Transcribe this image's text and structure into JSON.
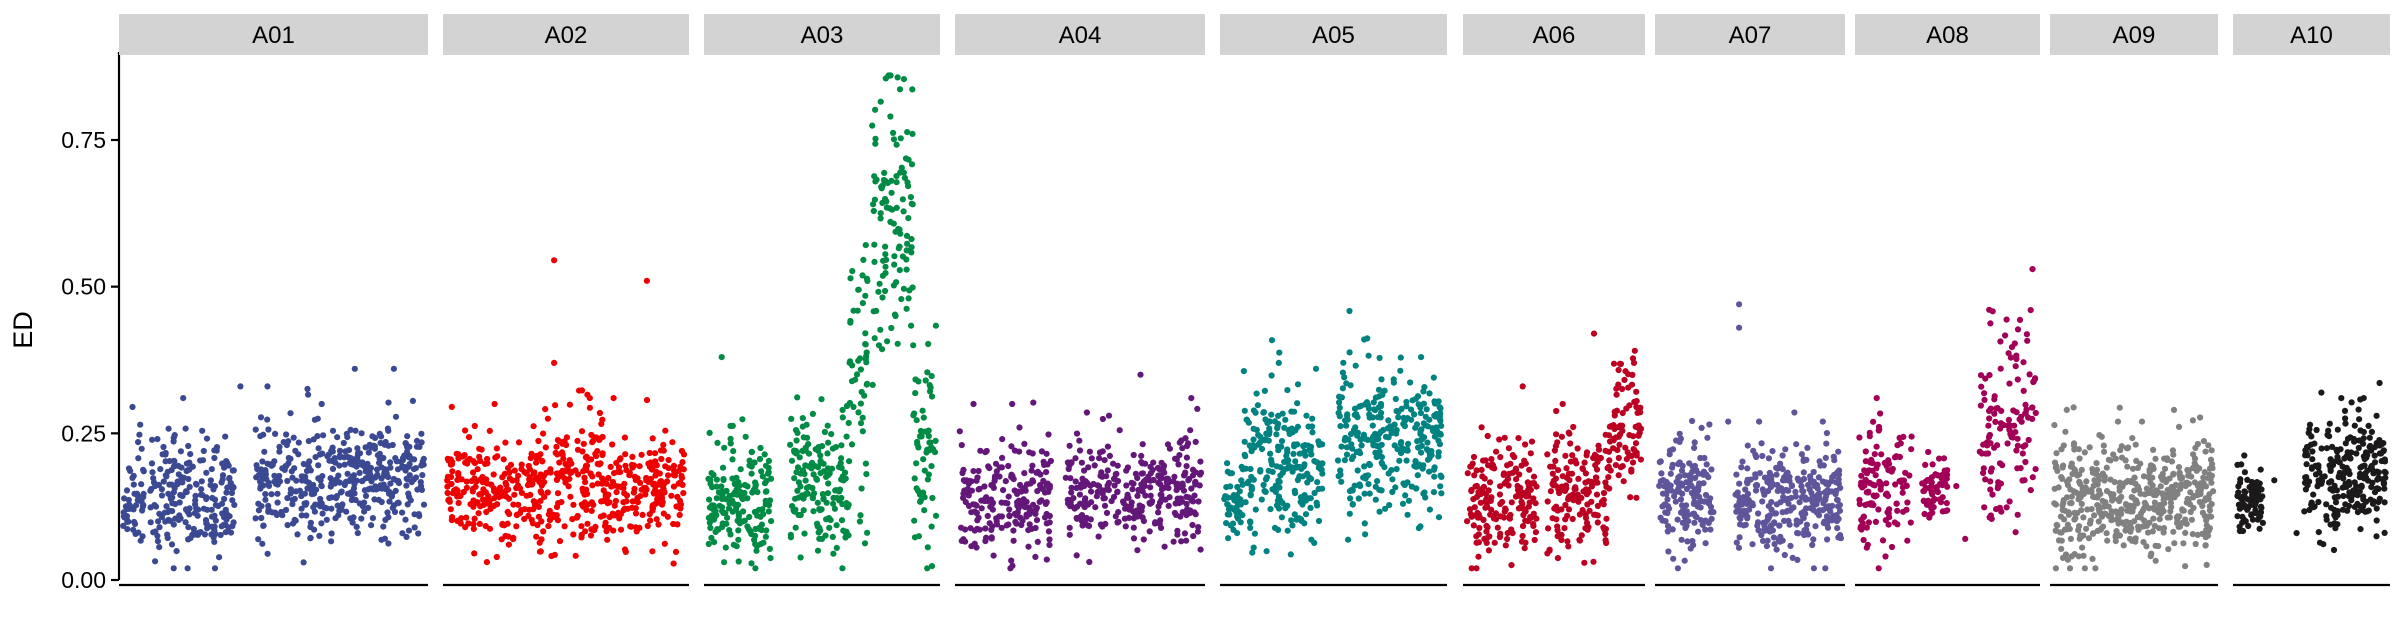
{
  "chart_data": {
    "type": "scatter",
    "title": "",
    "xlabel": "",
    "ylabel": "ED",
    "ylim": [
      0,
      0.9
    ],
    "y_ticks": [
      0.0,
      0.25,
      0.5,
      0.75
    ],
    "y_tick_labels": [
      "0.00",
      "0.25",
      "0.50",
      "0.75"
    ],
    "grid": false,
    "legend": "none",
    "panels": [
      {
        "name": "A01",
        "color": "#3B4992",
        "n": 700,
        "regions": [
          [
            0.0,
            0.025,
            0.13,
            0.03
          ],
          [
            0.03,
            0.07,
            0.15,
            0.06
          ],
          [
            0.09,
            0.37,
            0.14,
            0.05
          ],
          [
            0.44,
            1.0,
            0.17,
            0.05
          ]
        ],
        "outliers": [
          [
            0.39,
            0.33
          ],
          [
            0.48,
            0.33
          ],
          [
            0.77,
            0.36
          ],
          [
            0.9,
            0.36
          ],
          [
            0.66,
            0.3
          ],
          [
            0.05,
            0.235
          ],
          [
            0.2,
            0.31
          ],
          [
            0.6,
            0.03
          ]
        ]
      },
      {
        "name": "A02",
        "color": "#EE0000",
        "n": 560,
        "regions": [
          [
            0.0,
            0.4,
            0.15,
            0.045
          ],
          [
            0.4,
            0.65,
            0.17,
            0.06
          ],
          [
            0.65,
            1.0,
            0.15,
            0.045
          ]
        ],
        "outliers": [
          [
            0.45,
            0.545
          ],
          [
            0.84,
            0.51
          ],
          [
            0.45,
            0.37
          ],
          [
            0.02,
            0.295
          ],
          [
            0.2,
            0.3
          ],
          [
            0.6,
            0.31
          ],
          [
            0.7,
            0.31
          ]
        ]
      },
      {
        "name": "A03",
        "color": "#008B45",
        "n": 560,
        "regions": [
          [
            0.0,
            0.28,
            0.14,
            0.05
          ],
          [
            0.36,
            0.62,
            0.17,
            0.06
          ],
          [
            0.62,
            0.7,
            0.35,
            0.13
          ],
          [
            0.72,
            0.9,
            0.62,
            0.13
          ],
          [
            0.9,
            1.0,
            0.22,
            0.08
          ]
        ],
        "outliers": [
          [
            0.06,
            0.38
          ],
          [
            0.78,
            0.855
          ],
          [
            0.8,
            0.79
          ],
          [
            0.75,
            0.4
          ],
          [
            0.5,
            0.07
          ],
          [
            0.9,
            0.4
          ],
          [
            0.88,
            0.48
          ]
        ]
      },
      {
        "name": "A04",
        "color": "#631879",
        "n": 520,
        "regions": [
          [
            0.0,
            0.38,
            0.14,
            0.05
          ],
          [
            0.44,
            1.0,
            0.15,
            0.045
          ]
        ],
        "outliers": [
          [
            0.06,
            0.3
          ],
          [
            0.22,
            0.3
          ],
          [
            0.25,
            0.26
          ],
          [
            0.75,
            0.35
          ],
          [
            0.96,
            0.31
          ],
          [
            0.62,
            0.28
          ]
        ]
      },
      {
        "name": "A05",
        "color": "#008280",
        "n": 560,
        "regions": [
          [
            0.0,
            0.08,
            0.13,
            0.03
          ],
          [
            0.08,
            0.45,
            0.2,
            0.06
          ],
          [
            0.52,
            1.0,
            0.24,
            0.065
          ]
        ],
        "outliers": [
          [
            0.64,
            0.41
          ],
          [
            0.25,
            0.37
          ],
          [
            0.42,
            0.36
          ],
          [
            0.06,
            0.08
          ],
          [
            0.9,
            0.38
          ]
        ]
      },
      {
        "name": "A06",
        "color": "#BB0021",
        "n": 420,
        "regions": [
          [
            0.0,
            0.4,
            0.14,
            0.05
          ],
          [
            0.46,
            0.82,
            0.15,
            0.05
          ],
          [
            0.82,
            1.0,
            0.26,
            0.06
          ]
        ],
        "outliers": [
          [
            0.73,
            0.42
          ],
          [
            0.32,
            0.33
          ],
          [
            0.96,
            0.37
          ],
          [
            0.1,
            0.07
          ],
          [
            0.55,
            0.3
          ]
        ]
      },
      {
        "name": "A07",
        "color": "#5F559B",
        "n": 460,
        "regions": [
          [
            0.0,
            0.3,
            0.15,
            0.05
          ],
          [
            0.42,
            1.0,
            0.14,
            0.045
          ]
        ],
        "outliers": [
          [
            0.44,
            0.47
          ],
          [
            0.44,
            0.43
          ],
          [
            0.38,
            0.27
          ],
          [
            0.9,
            0.27
          ],
          [
            0.55,
            0.27
          ]
        ]
      },
      {
        "name": "A08",
        "color": "#A20056",
        "n": 300,
        "regions": [
          [
            0.0,
            0.3,
            0.16,
            0.05
          ],
          [
            0.35,
            0.5,
            0.15,
            0.03
          ],
          [
            0.68,
            1.0,
            0.25,
            0.085
          ]
        ],
        "outliers": [
          [
            0.1,
            0.31
          ],
          [
            0.98,
            0.53
          ],
          [
            0.97,
            0.46
          ],
          [
            0.55,
            0.16
          ],
          [
            0.6,
            0.07
          ],
          [
            0.05,
            0.06
          ],
          [
            0.15,
            0.04
          ],
          [
            0.75,
            0.19
          ]
        ]
      },
      {
        "name": "A09",
        "color": "#808180",
        "n": 480,
        "regions": [
          [
            0.0,
            0.35,
            0.14,
            0.05
          ],
          [
            0.35,
            0.7,
            0.14,
            0.05
          ],
          [
            0.7,
            1.0,
            0.15,
            0.05
          ]
        ],
        "outliers": [
          [
            0.4,
            0.27
          ],
          [
            0.75,
            0.29
          ],
          [
            0.08,
            0.29
          ],
          [
            0.55,
            0.27
          ]
        ]
      },
      {
        "name": "A10",
        "color": "#1B1919",
        "n": 330,
        "regions": [
          [
            0.0,
            0.18,
            0.14,
            0.03
          ],
          [
            0.45,
            1.0,
            0.18,
            0.05
          ]
        ],
        "outliers": [
          [
            0.25,
            0.17
          ],
          [
            0.7,
            0.31
          ],
          [
            0.85,
            0.31
          ],
          [
            0.4,
            0.08
          ]
        ]
      }
    ]
  }
}
